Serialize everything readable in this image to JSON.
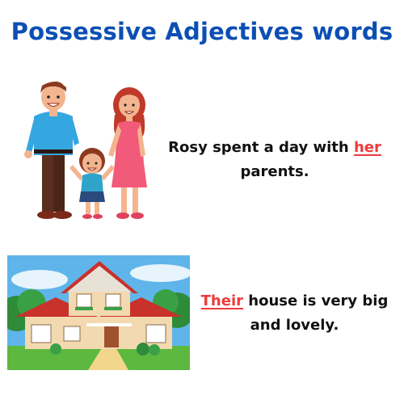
{
  "title": "Possessive Adjectives words",
  "colors": {
    "title": "#0b4fb3",
    "accent": "#ee3b3b"
  },
  "examples": [
    {
      "image": "family-illustration",
      "before": "Rosy spent a day with ",
      "highlight": "her",
      "after": " parents."
    },
    {
      "image": "house-illustration",
      "before": "",
      "highlight": "Their",
      "after": " house is very big and lovely."
    }
  ]
}
